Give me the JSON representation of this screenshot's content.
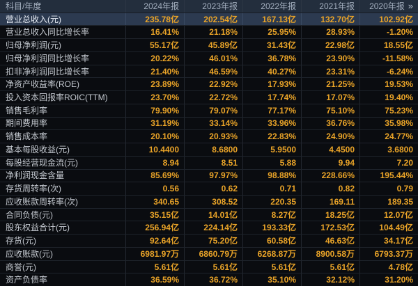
{
  "colors": {
    "accent_gold": "#eaa428",
    "header_bg": "#232e3d",
    "selected_row_bg": "#2c3a50",
    "row_bg": "#0a0c10"
  },
  "table": {
    "corner_label": "科目/年度",
    "years": [
      "2024年报",
      "2023年报",
      "2022年报",
      "2021年报",
      "2020年报"
    ],
    "more_icon": "»",
    "rows": [
      {
        "label": "营业总收入(元)",
        "selected": true,
        "values": [
          "235.78亿",
          "202.54亿",
          "167.13亿",
          "132.70亿",
          "102.92亿"
        ]
      },
      {
        "label": "营业总收入同比增长率",
        "selected": false,
        "values": [
          "16.41%",
          "21.18%",
          "25.95%",
          "28.93%",
          "-1.20%"
        ]
      },
      {
        "label": "归母净利润(元)",
        "selected": false,
        "values": [
          "55.17亿",
          "45.89亿",
          "31.43亿",
          "22.98亿",
          "18.55亿"
        ]
      },
      {
        "label": "归母净利润同比增长率",
        "selected": false,
        "values": [
          "20.22%",
          "46.01%",
          "36.78%",
          "23.90%",
          "-11.58%"
        ]
      },
      {
        "label": "扣非净利润同比增长率",
        "selected": false,
        "values": [
          "21.40%",
          "46.59%",
          "40.27%",
          "23.31%",
          "-6.24%"
        ]
      },
      {
        "label": "净资产收益率(ROE)",
        "selected": false,
        "values": [
          "23.89%",
          "22.92%",
          "17.93%",
          "21.25%",
          "19.53%"
        ]
      },
      {
        "label": "投入资本回报率ROIC(TTM)",
        "selected": false,
        "values": [
          "23.70%",
          "22.72%",
          "17.74%",
          "17.07%",
          "19.40%"
        ]
      },
      {
        "label": "销售毛利率",
        "selected": false,
        "values": [
          "79.90%",
          "79.07%",
          "77.17%",
          "75.10%",
          "75.23%"
        ]
      },
      {
        "label": "期间费用率",
        "selected": false,
        "values": [
          "31.19%",
          "33.14%",
          "33.96%",
          "36.76%",
          "35.98%"
        ]
      },
      {
        "label": "销售成本率",
        "selected": false,
        "values": [
          "20.10%",
          "20.93%",
          "22.83%",
          "24.90%",
          "24.77%"
        ]
      },
      {
        "label": "基本每股收益(元)",
        "selected": false,
        "values": [
          "10.4400",
          "8.6800",
          "5.9500",
          "4.4500",
          "3.6800"
        ]
      },
      {
        "label": "每股经营现金流(元)",
        "selected": false,
        "values": [
          "8.94",
          "8.51",
          "5.88",
          "9.94",
          "7.20"
        ]
      },
      {
        "label": "净利润现金含量",
        "selected": false,
        "values": [
          "85.69%",
          "97.97%",
          "98.88%",
          "228.66%",
          "195.44%"
        ]
      },
      {
        "label": "存货周转率(次)",
        "selected": false,
        "values": [
          "0.56",
          "0.62",
          "0.71",
          "0.82",
          "0.79"
        ]
      },
      {
        "label": "应收账款周转率(次)",
        "selected": false,
        "values": [
          "340.65",
          "308.52",
          "220.35",
          "169.11",
          "189.35"
        ]
      },
      {
        "label": "合同负债(元)",
        "selected": false,
        "values": [
          "35.15亿",
          "14.01亿",
          "8.27亿",
          "18.25亿",
          "12.07亿"
        ]
      },
      {
        "label": "股东权益合计(元)",
        "selected": false,
        "values": [
          "256.94亿",
          "224.14亿",
          "193.33亿",
          "172.53亿",
          "104.49亿"
        ]
      },
      {
        "label": "存货(元)",
        "selected": false,
        "values": [
          "92.64亿",
          "75.20亿",
          "60.58亿",
          "46.63亿",
          "34.17亿"
        ]
      },
      {
        "label": "应收账款(元)",
        "selected": false,
        "values": [
          "6981.97万",
          "6860.79万",
          "6268.87万",
          "8900.58万",
          "6793.37万"
        ]
      },
      {
        "label": "商誉(元)",
        "selected": false,
        "values": [
          "5.61亿",
          "5.61亿",
          "5.61亿",
          "5.61亿",
          "4.78亿"
        ]
      },
      {
        "label": "资产负债率",
        "selected": false,
        "values": [
          "36.59%",
          "36.72%",
          "35.10%",
          "32.12%",
          "31.20%"
        ]
      }
    ]
  }
}
